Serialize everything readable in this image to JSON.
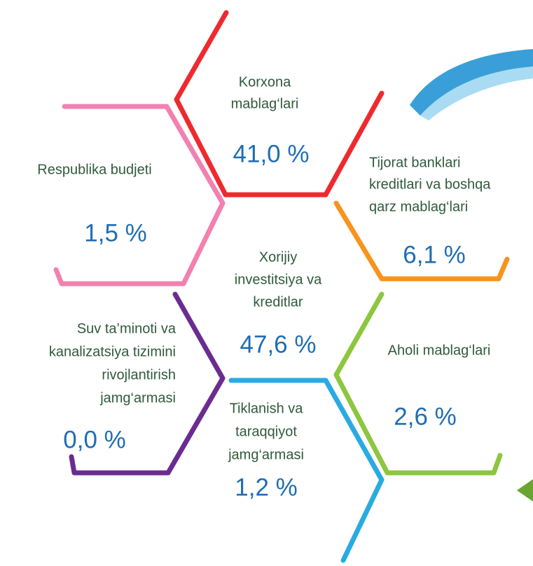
{
  "items": [
    {
      "lines": [
        "Korxona",
        "mablag‘lari"
      ],
      "value": "41,0 %"
    },
    {
      "lines": [
        "Respublika budjeti"
      ],
      "value": "1,5 %"
    },
    {
      "lines": [
        "Tijorat banklari",
        "kreditlari va boshqa",
        "qarz mablag‘lari"
      ],
      "value": "6,1 %"
    },
    {
      "lines": [
        "Xorijiy",
        "investitsiya va",
        "kreditlar"
      ],
      "value": "47,6 %"
    },
    {
      "lines": [
        "Suv ta’minoti va",
        "kanalizatsiya tizimini",
        "rivojlantirish",
        "jamg‘armasi"
      ],
      "value": "0,0 %"
    },
    {
      "lines": [
        "Aholi mablag‘lari"
      ],
      "value": "2,6 %"
    },
    {
      "lines": [
        "Tiklanish va",
        "taraqqiyot",
        "jamg‘armasi"
      ],
      "value": "1,2 %"
    }
  ]
}
